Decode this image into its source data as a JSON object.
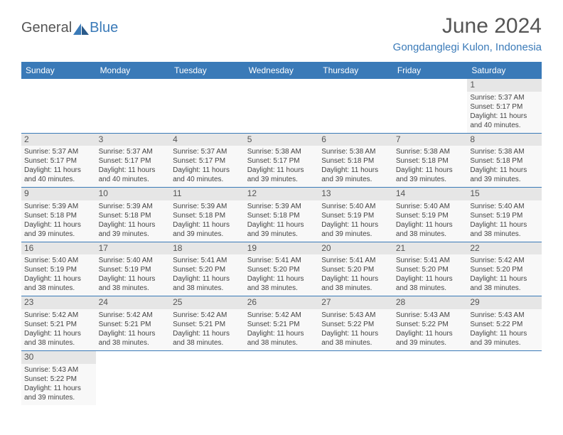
{
  "brand": {
    "part1": "General",
    "part2": "Blue"
  },
  "title": "June 2024",
  "location": "Gongdanglegi Kulon, Indonesia",
  "colors": {
    "header_bg": "#3a7ab8",
    "header_text": "#ffffff",
    "cell_divider": "#3a7ab8",
    "daynum_bg": "#e6e6e6",
    "page_bg": "#ffffff",
    "text": "#444444"
  },
  "day_headers": [
    "Sunday",
    "Monday",
    "Tuesday",
    "Wednesday",
    "Thursday",
    "Friday",
    "Saturday"
  ],
  "weeks": [
    [
      null,
      null,
      null,
      null,
      null,
      null,
      {
        "n": "1",
        "sr": "Sunrise: 5:37 AM",
        "ss": "Sunset: 5:17 PM",
        "d1": "Daylight: 11 hours",
        "d2": "and 40 minutes."
      }
    ],
    [
      {
        "n": "2",
        "sr": "Sunrise: 5:37 AM",
        "ss": "Sunset: 5:17 PM",
        "d1": "Daylight: 11 hours",
        "d2": "and 40 minutes."
      },
      {
        "n": "3",
        "sr": "Sunrise: 5:37 AM",
        "ss": "Sunset: 5:17 PM",
        "d1": "Daylight: 11 hours",
        "d2": "and 40 minutes."
      },
      {
        "n": "4",
        "sr": "Sunrise: 5:37 AM",
        "ss": "Sunset: 5:17 PM",
        "d1": "Daylight: 11 hours",
        "d2": "and 40 minutes."
      },
      {
        "n": "5",
        "sr": "Sunrise: 5:38 AM",
        "ss": "Sunset: 5:17 PM",
        "d1": "Daylight: 11 hours",
        "d2": "and 39 minutes."
      },
      {
        "n": "6",
        "sr": "Sunrise: 5:38 AM",
        "ss": "Sunset: 5:18 PM",
        "d1": "Daylight: 11 hours",
        "d2": "and 39 minutes."
      },
      {
        "n": "7",
        "sr": "Sunrise: 5:38 AM",
        "ss": "Sunset: 5:18 PM",
        "d1": "Daylight: 11 hours",
        "d2": "and 39 minutes."
      },
      {
        "n": "8",
        "sr": "Sunrise: 5:38 AM",
        "ss": "Sunset: 5:18 PM",
        "d1": "Daylight: 11 hours",
        "d2": "and 39 minutes."
      }
    ],
    [
      {
        "n": "9",
        "sr": "Sunrise: 5:39 AM",
        "ss": "Sunset: 5:18 PM",
        "d1": "Daylight: 11 hours",
        "d2": "and 39 minutes."
      },
      {
        "n": "10",
        "sr": "Sunrise: 5:39 AM",
        "ss": "Sunset: 5:18 PM",
        "d1": "Daylight: 11 hours",
        "d2": "and 39 minutes."
      },
      {
        "n": "11",
        "sr": "Sunrise: 5:39 AM",
        "ss": "Sunset: 5:18 PM",
        "d1": "Daylight: 11 hours",
        "d2": "and 39 minutes."
      },
      {
        "n": "12",
        "sr": "Sunrise: 5:39 AM",
        "ss": "Sunset: 5:18 PM",
        "d1": "Daylight: 11 hours",
        "d2": "and 39 minutes."
      },
      {
        "n": "13",
        "sr": "Sunrise: 5:40 AM",
        "ss": "Sunset: 5:19 PM",
        "d1": "Daylight: 11 hours",
        "d2": "and 39 minutes."
      },
      {
        "n": "14",
        "sr": "Sunrise: 5:40 AM",
        "ss": "Sunset: 5:19 PM",
        "d1": "Daylight: 11 hours",
        "d2": "and 38 minutes."
      },
      {
        "n": "15",
        "sr": "Sunrise: 5:40 AM",
        "ss": "Sunset: 5:19 PM",
        "d1": "Daylight: 11 hours",
        "d2": "and 38 minutes."
      }
    ],
    [
      {
        "n": "16",
        "sr": "Sunrise: 5:40 AM",
        "ss": "Sunset: 5:19 PM",
        "d1": "Daylight: 11 hours",
        "d2": "and 38 minutes."
      },
      {
        "n": "17",
        "sr": "Sunrise: 5:40 AM",
        "ss": "Sunset: 5:19 PM",
        "d1": "Daylight: 11 hours",
        "d2": "and 38 minutes."
      },
      {
        "n": "18",
        "sr": "Sunrise: 5:41 AM",
        "ss": "Sunset: 5:20 PM",
        "d1": "Daylight: 11 hours",
        "d2": "and 38 minutes."
      },
      {
        "n": "19",
        "sr": "Sunrise: 5:41 AM",
        "ss": "Sunset: 5:20 PM",
        "d1": "Daylight: 11 hours",
        "d2": "and 38 minutes."
      },
      {
        "n": "20",
        "sr": "Sunrise: 5:41 AM",
        "ss": "Sunset: 5:20 PM",
        "d1": "Daylight: 11 hours",
        "d2": "and 38 minutes."
      },
      {
        "n": "21",
        "sr": "Sunrise: 5:41 AM",
        "ss": "Sunset: 5:20 PM",
        "d1": "Daylight: 11 hours",
        "d2": "and 38 minutes."
      },
      {
        "n": "22",
        "sr": "Sunrise: 5:42 AM",
        "ss": "Sunset: 5:20 PM",
        "d1": "Daylight: 11 hours",
        "d2": "and 38 minutes."
      }
    ],
    [
      {
        "n": "23",
        "sr": "Sunrise: 5:42 AM",
        "ss": "Sunset: 5:21 PM",
        "d1": "Daylight: 11 hours",
        "d2": "and 38 minutes."
      },
      {
        "n": "24",
        "sr": "Sunrise: 5:42 AM",
        "ss": "Sunset: 5:21 PM",
        "d1": "Daylight: 11 hours",
        "d2": "and 38 minutes."
      },
      {
        "n": "25",
        "sr": "Sunrise: 5:42 AM",
        "ss": "Sunset: 5:21 PM",
        "d1": "Daylight: 11 hours",
        "d2": "and 38 minutes."
      },
      {
        "n": "26",
        "sr": "Sunrise: 5:42 AM",
        "ss": "Sunset: 5:21 PM",
        "d1": "Daylight: 11 hours",
        "d2": "and 38 minutes."
      },
      {
        "n": "27",
        "sr": "Sunrise: 5:43 AM",
        "ss": "Sunset: 5:22 PM",
        "d1": "Daylight: 11 hours",
        "d2": "and 38 minutes."
      },
      {
        "n": "28",
        "sr": "Sunrise: 5:43 AM",
        "ss": "Sunset: 5:22 PM",
        "d1": "Daylight: 11 hours",
        "d2": "and 39 minutes."
      },
      {
        "n": "29",
        "sr": "Sunrise: 5:43 AM",
        "ss": "Sunset: 5:22 PM",
        "d1": "Daylight: 11 hours",
        "d2": "and 39 minutes."
      }
    ],
    [
      {
        "n": "30",
        "sr": "Sunrise: 5:43 AM",
        "ss": "Sunset: 5:22 PM",
        "d1": "Daylight: 11 hours",
        "d2": "and 39 minutes."
      },
      null,
      null,
      null,
      null,
      null,
      null
    ]
  ]
}
